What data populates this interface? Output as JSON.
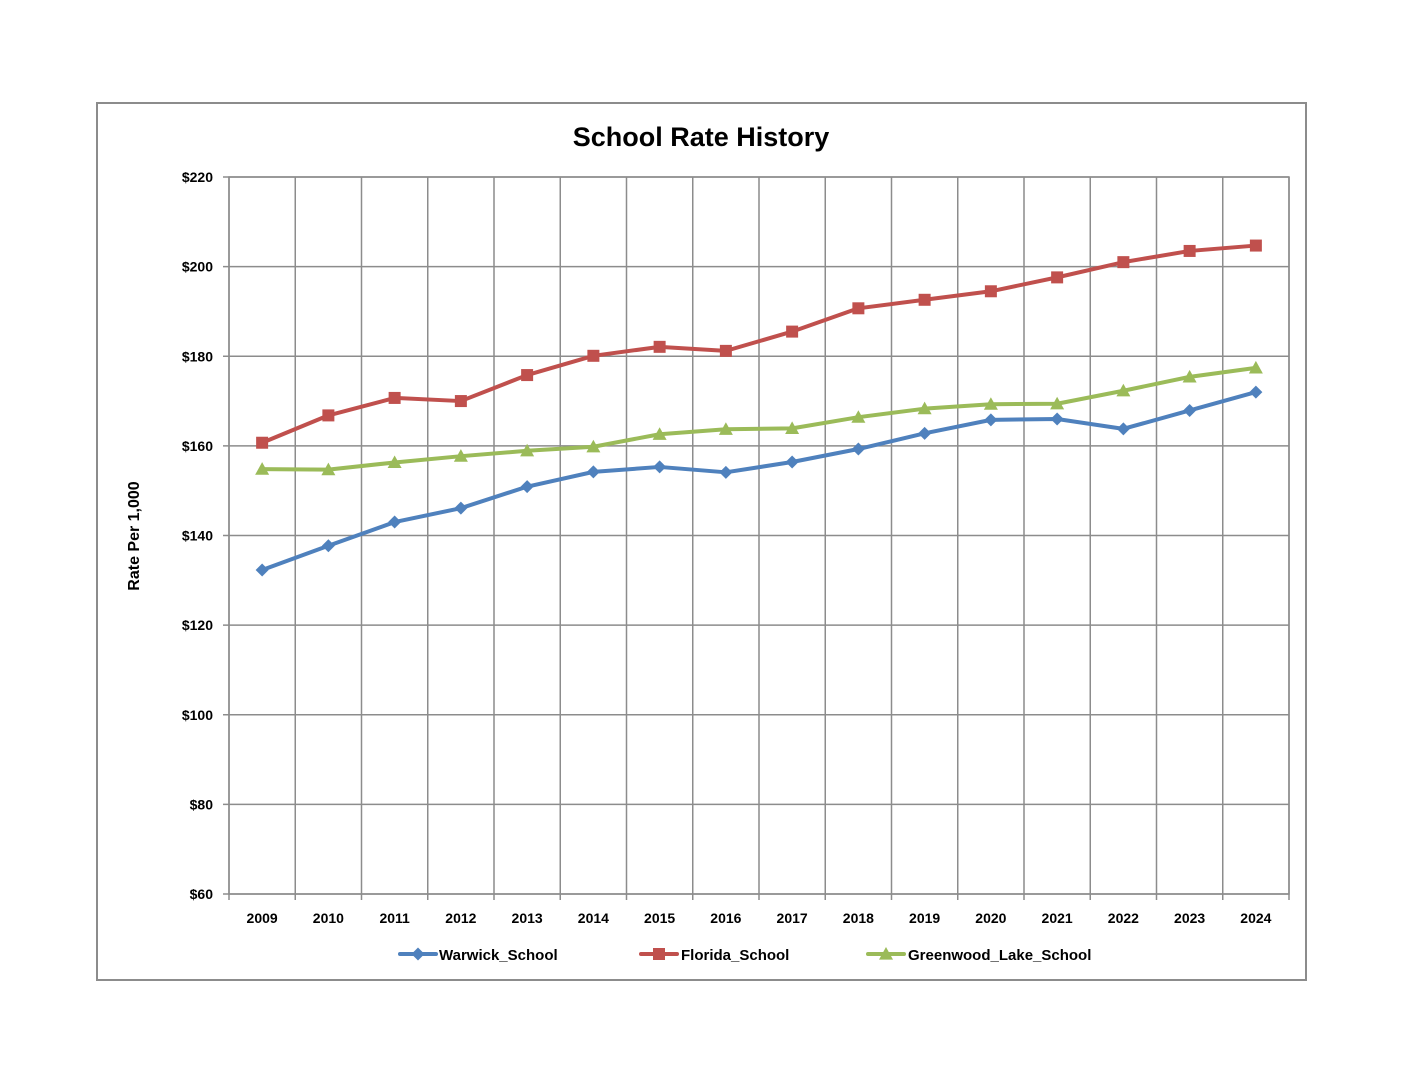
{
  "chart_data": {
    "type": "line",
    "title": "School Rate History",
    "xlabel": "",
    "ylabel": "Rate Per 1,000",
    "ylim": [
      60,
      220
    ],
    "ytick_step": 20,
    "ytick_prefix": "$",
    "grid": true,
    "legend_position": "bottom",
    "categories": [
      "2009",
      "2010",
      "2011",
      "2012",
      "2013",
      "2014",
      "2015",
      "2016",
      "2017",
      "2018",
      "2019",
      "2020",
      "2021",
      "2022",
      "2023",
      "2024"
    ],
    "series": [
      {
        "name": "Warwick_School",
        "color": "#4f81bd",
        "marker": "diamond",
        "values": [
          132.3,
          137.7,
          143.0,
          146.1,
          150.9,
          154.2,
          155.3,
          154.1,
          156.4,
          159.3,
          162.8,
          165.8,
          166.0,
          163.8,
          167.9,
          172.0
        ]
      },
      {
        "name": "Florida_School",
        "color": "#c0504d",
        "marker": "square",
        "values": [
          160.7,
          166.8,
          170.7,
          170.0,
          175.8,
          180.1,
          182.1,
          181.2,
          185.5,
          190.7,
          192.6,
          194.5,
          197.6,
          201.0,
          203.5,
          204.7
        ]
      },
      {
        "name": "Greenwood_Lake_School",
        "color": "#9bbb59",
        "marker": "triangle",
        "values": [
          154.8,
          154.7,
          156.3,
          157.7,
          158.9,
          159.8,
          162.6,
          163.7,
          163.9,
          166.4,
          168.3,
          169.3,
          169.4,
          172.3,
          175.4,
          177.4
        ]
      }
    ]
  }
}
